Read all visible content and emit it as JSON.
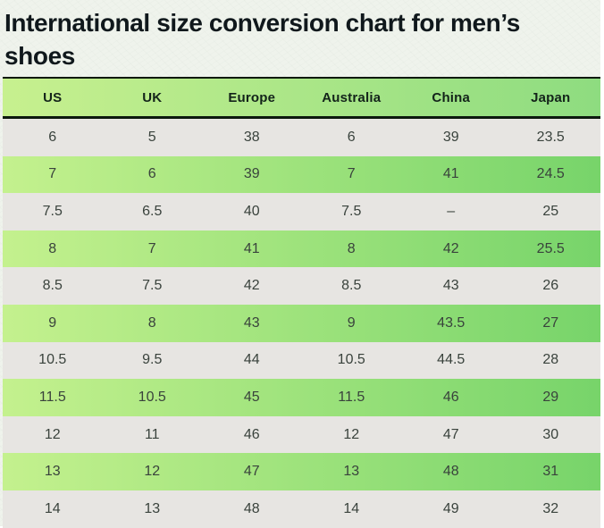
{
  "page": {
    "title": "International size conversion chart for men’s shoes"
  },
  "chart_data": {
    "type": "table",
    "title": "International size conversion chart for men’s shoes",
    "columns": [
      "US",
      "UK",
      "Europe",
      "Australia",
      "China",
      "Japan"
    ],
    "rows": [
      [
        "6",
        "5",
        "38",
        "6",
        "39",
        "23.5"
      ],
      [
        "7",
        "6",
        "39",
        "7",
        "41",
        "24.5"
      ],
      [
        "7.5",
        "6.5",
        "40",
        "7.5",
        "–",
        "25"
      ],
      [
        "8",
        "7",
        "41",
        "8",
        "42",
        "25.5"
      ],
      [
        "8.5",
        "7.5",
        "42",
        "8.5",
        "43",
        "26"
      ],
      [
        "9",
        "8",
        "43",
        "9",
        "43.5",
        "27"
      ],
      [
        "10.5",
        "9.5",
        "44",
        "10.5",
        "44.5",
        "28"
      ],
      [
        "11.5",
        "10.5",
        "45",
        "11.5",
        "46",
        "29"
      ],
      [
        "12",
        "11",
        "46",
        "12",
        "47",
        "30"
      ],
      [
        "13",
        "12",
        "47",
        "13",
        "48",
        "31"
      ],
      [
        "14",
        "13",
        "48",
        "14",
        "49",
        "32"
      ]
    ],
    "layout": {
      "row_striping": [
        "gray",
        "green-gradient"
      ],
      "header_background": "green-gradient"
    }
  },
  "colors": {
    "page_background": "#eff3ec",
    "title_text": "#10181c",
    "header_gradient_left": "#c7f08f",
    "header_gradient_right": "#8edc80",
    "row_gradient_left": "#c4f18e",
    "row_gradient_right": "#77d46a",
    "row_gray": "#e7e5e2",
    "border_dark": "#0c190e",
    "cell_text": "#39423c"
  }
}
